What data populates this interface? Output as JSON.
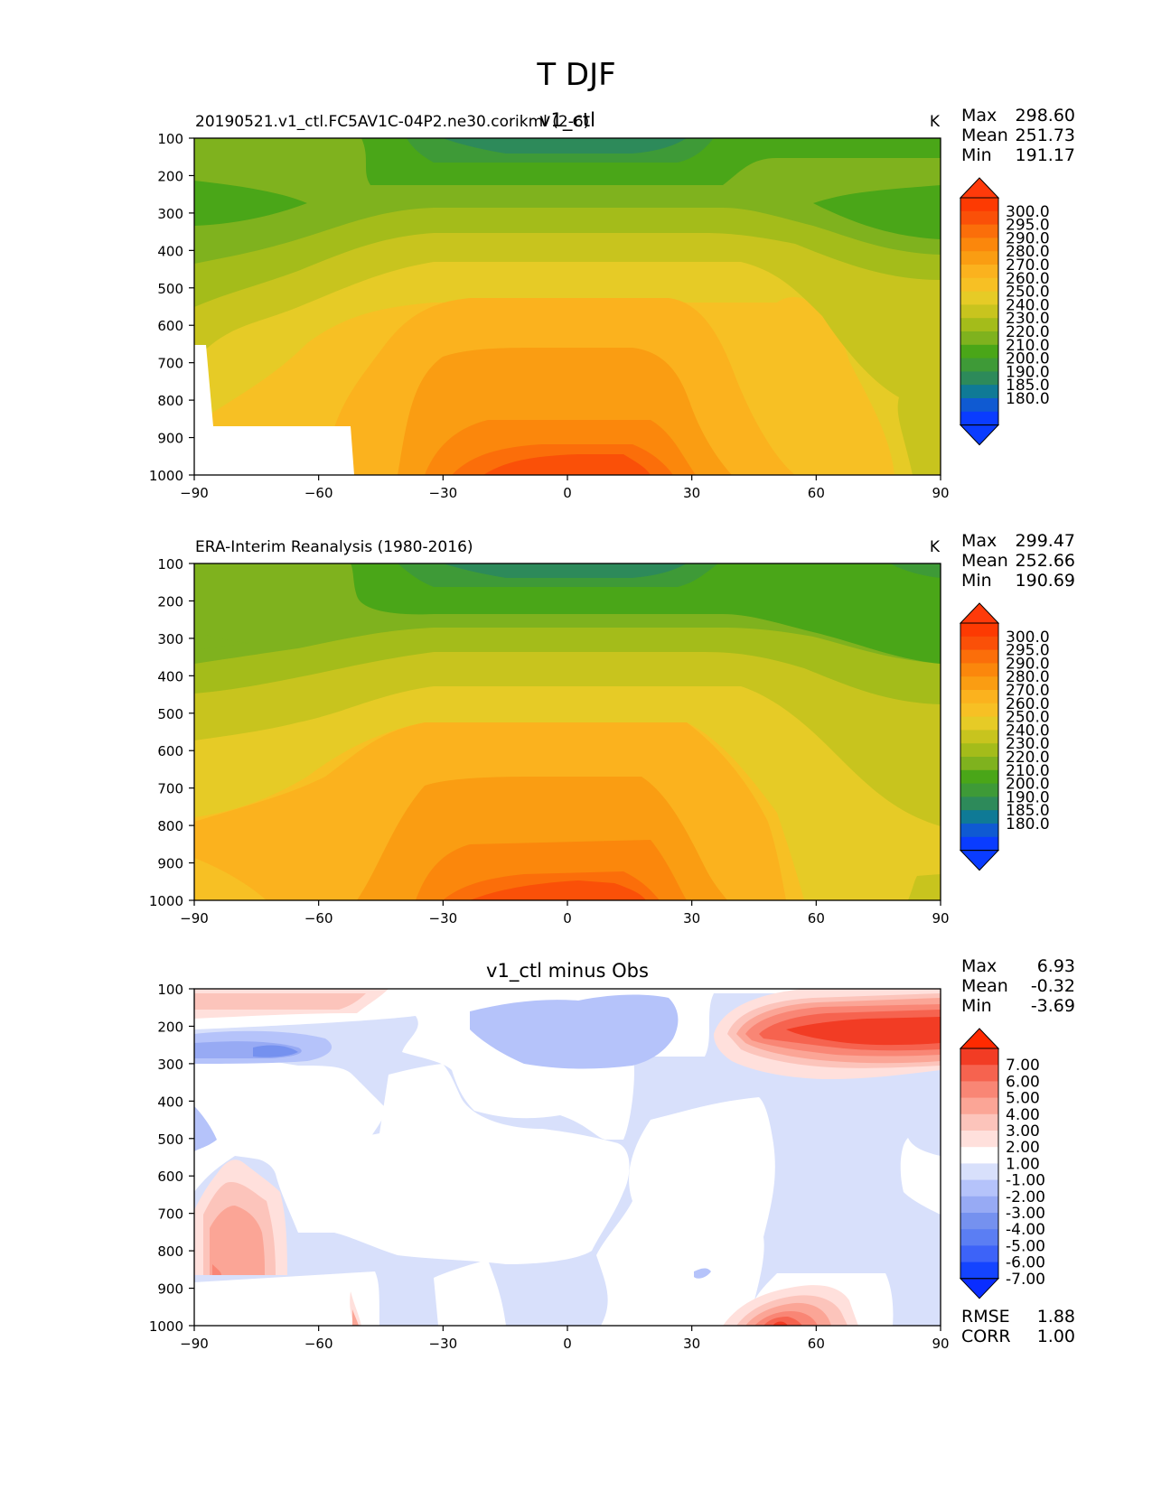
{
  "figure": {
    "title": "T DJF"
  },
  "colors": {
    "abs": [
      "#0a3cff",
      "#0f5ad2",
      "#0f7a96",
      "#2d8a5a",
      "#3e9a37",
      "#4aa618",
      "#7fb21e",
      "#a4bc1a",
      "#c8c41e",
      "#e6cb26",
      "#f7c024",
      "#fbb21e",
      "#fa9d12",
      "#fb870c",
      "#fb6e0a",
      "#fa5008",
      "#fd3a02"
    ],
    "abs_top": "#ff3a0a",
    "abs_bottom": "#0a3cff",
    "diff": [
      "#1444ff",
      "#3d63f8",
      "#5b7ef3",
      "#7591ef",
      "#97aaf4",
      "#b5c3fa",
      "#d8e0fb",
      "#ffffff",
      "#ffe0dc",
      "#fcc4bb",
      "#fba596",
      "#f98675",
      "#f6634f",
      "#f23c24"
    ],
    "diff_top": "#ff2a00",
    "diff_bottom": "#0a2dff"
  },
  "chart_data": [
    {
      "type": "heatmap",
      "name": "v1_ctl",
      "title_center": "v1_ctl",
      "title_left": "20190521.v1_ctl.FC5AV1C-04P2.ne30.corikml (2-6)",
      "units": "K",
      "stats": [
        {
          "label": "Max",
          "value": "298.60"
        },
        {
          "label": "Mean",
          "value": "251.73"
        },
        {
          "label": "Min",
          "value": "191.17"
        }
      ],
      "x_ticks": [
        -90,
        -60,
        -30,
        0,
        30,
        60,
        90
      ],
      "y_ticks": [
        100,
        200,
        300,
        400,
        500,
        600,
        700,
        800,
        900,
        1000
      ],
      "xlim": [
        -90,
        90
      ],
      "ylim": [
        1000,
        100
      ],
      "y_inverted": true,
      "colorbar_levels": [
        "300.0",
        "295.0",
        "290.0",
        "280.0",
        "270.0",
        "260.0",
        "250.0",
        "240.0",
        "230.0",
        "220.0",
        "210.0",
        "200.0",
        "190.0",
        "185.0",
        "180.0"
      ],
      "masked_below_surface": true
    },
    {
      "type": "heatmap",
      "name": "ERA-Interim",
      "title_left": "ERA-Interim Reanalysis (1980-2016)",
      "units": "K",
      "stats": [
        {
          "label": "Max",
          "value": "299.47"
        },
        {
          "label": "Mean",
          "value": "252.66"
        },
        {
          "label": "Min",
          "value": "190.69"
        }
      ],
      "x_ticks": [
        -90,
        -60,
        -30,
        0,
        30,
        60,
        90
      ],
      "y_ticks": [
        100,
        200,
        300,
        400,
        500,
        600,
        700,
        800,
        900,
        1000
      ],
      "xlim": [
        -90,
        90
      ],
      "ylim": [
        1000,
        100
      ],
      "y_inverted": true,
      "colorbar_levels": [
        "300.0",
        "295.0",
        "290.0",
        "280.0",
        "270.0",
        "260.0",
        "250.0",
        "240.0",
        "230.0",
        "220.0",
        "210.0",
        "200.0",
        "190.0",
        "185.0",
        "180.0"
      ]
    },
    {
      "type": "heatmap",
      "name": "difference",
      "title_center": "v1_ctl minus Obs",
      "stats": [
        {
          "label": "Max",
          "value": "6.93"
        },
        {
          "label": "Mean",
          "value": "-0.32"
        },
        {
          "label": "Min",
          "value": "-3.69"
        }
      ],
      "metrics": [
        {
          "label": "RMSE",
          "value": "1.88"
        },
        {
          "label": "CORR",
          "value": "1.00"
        }
      ],
      "x_ticks": [
        -90,
        -60,
        -30,
        0,
        30,
        60,
        90
      ],
      "y_ticks": [
        100,
        200,
        300,
        400,
        500,
        600,
        700,
        800,
        900,
        1000
      ],
      "xlim": [
        -90,
        90
      ],
      "ylim": [
        1000,
        100
      ],
      "y_inverted": true,
      "colorbar_levels": [
        "7.00",
        "6.00",
        "5.00",
        "4.00",
        "3.00",
        "2.00",
        "1.00",
        "-1.00",
        "-2.00",
        "-3.00",
        "-4.00",
        "-5.00",
        "-6.00",
        "-7.00"
      ]
    }
  ]
}
